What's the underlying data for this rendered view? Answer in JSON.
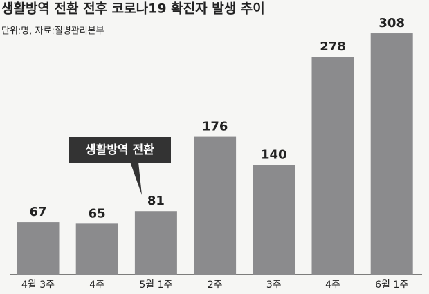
{
  "chart_data": {
    "type": "bar",
    "title": "생활방역 전환 전후 코로나19 확진자 발생 추이",
    "subtitle": "단위:명, 자료:질병관리본부",
    "annotation": "생활방역 전환",
    "categories": [
      "4월 3주",
      "4주",
      "5월 1주",
      "2주",
      "3주",
      "4주",
      "6월 1주"
    ],
    "values": [
      67,
      65,
      81,
      176,
      140,
      278,
      308
    ],
    "color": "#8b8b8d"
  }
}
